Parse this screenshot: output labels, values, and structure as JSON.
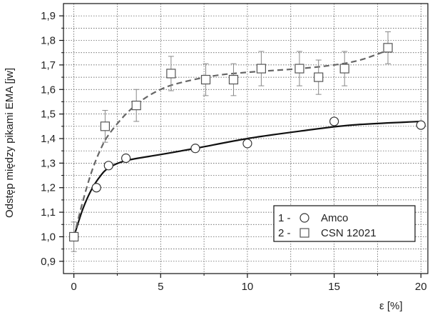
{
  "chart_data": {
    "type": "scatter",
    "xlabel": "ε [%]",
    "ylabel": "Odstęp między pikami EMA [jw]",
    "xlim": [
      -0.6,
      20.4
    ],
    "ylim": [
      0.85,
      1.95
    ],
    "xticks": [
      0,
      5,
      10,
      15,
      20
    ],
    "xtick_labels": [
      "0",
      "5",
      "10",
      "15",
      "20"
    ],
    "yticks": [
      0.9,
      1.0,
      1.1,
      1.2,
      1.3,
      1.4,
      1.5,
      1.6,
      1.7,
      1.8,
      1.9
    ],
    "ytick_labels": [
      "0,9",
      "1,0",
      "1,1",
      "1,2",
      "1,3",
      "1,4",
      "1,5",
      "1,6",
      "1,7",
      "1,8",
      "1,9"
    ],
    "grid": true,
    "legend_position": "bottom-right",
    "series": [
      {
        "name": "Amco",
        "legend_label": "Amco",
        "legend_num": "1 -",
        "marker": "circle",
        "line_style": "solid",
        "color": "#111111",
        "points": [
          {
            "x": 0,
            "y": 1.0
          },
          {
            "x": 1.3,
            "y": 1.2
          },
          {
            "x": 2.0,
            "y": 1.29
          },
          {
            "x": 3.0,
            "y": 1.32
          },
          {
            "x": 7.0,
            "y": 1.36
          },
          {
            "x": 10.0,
            "y": 1.38
          },
          {
            "x": 15.0,
            "y": 1.47
          },
          {
            "x": 20.0,
            "y": 1.455
          }
        ],
        "fit": [
          {
            "x": 0,
            "y": 1.0
          },
          {
            "x": 0.5,
            "y": 1.11
          },
          {
            "x": 1.0,
            "y": 1.19
          },
          {
            "x": 1.5,
            "y": 1.245
          },
          {
            "x": 2.0,
            "y": 1.28
          },
          {
            "x": 3.0,
            "y": 1.31
          },
          {
            "x": 5.0,
            "y": 1.335
          },
          {
            "x": 7.0,
            "y": 1.36
          },
          {
            "x": 10.0,
            "y": 1.4
          },
          {
            "x": 13.0,
            "y": 1.43
          },
          {
            "x": 16.0,
            "y": 1.455
          },
          {
            "x": 20.0,
            "y": 1.47
          }
        ]
      },
      {
        "name": "CSN 12021",
        "legend_label": "CSN 12021",
        "legend_num": "2 -",
        "marker": "square",
        "line_style": "dashed",
        "color": "#666666",
        "points": [
          {
            "x": 0,
            "y": 1.0,
            "err": 0.06
          },
          {
            "x": 1.8,
            "y": 1.45,
            "err": 0.065
          },
          {
            "x": 3.6,
            "y": 1.535,
            "err": 0.065
          },
          {
            "x": 5.6,
            "y": 1.665,
            "err": 0.07
          },
          {
            "x": 7.6,
            "y": 1.64,
            "err": 0.065
          },
          {
            "x": 9.2,
            "y": 1.64,
            "err": 0.065
          },
          {
            "x": 10.8,
            "y": 1.685,
            "err": 0.07
          },
          {
            "x": 13.0,
            "y": 1.685,
            "err": 0.07
          },
          {
            "x": 14.1,
            "y": 1.65,
            "err": 0.07
          },
          {
            "x": 15.6,
            "y": 1.685,
            "err": 0.07
          },
          {
            "x": 18.1,
            "y": 1.77,
            "err": 0.065
          }
        ],
        "fit": [
          {
            "x": 0,
            "y": 1.0
          },
          {
            "x": 0.5,
            "y": 1.14
          },
          {
            "x": 1.0,
            "y": 1.26
          },
          {
            "x": 1.5,
            "y": 1.35
          },
          {
            "x": 2.0,
            "y": 1.415
          },
          {
            "x": 3.0,
            "y": 1.5
          },
          {
            "x": 4.0,
            "y": 1.56
          },
          {
            "x": 5.0,
            "y": 1.6
          },
          {
            "x": 6.0,
            "y": 1.625
          },
          {
            "x": 8.0,
            "y": 1.655
          },
          {
            "x": 10.0,
            "y": 1.67
          },
          {
            "x": 13.0,
            "y": 1.685
          },
          {
            "x": 15.0,
            "y": 1.7
          },
          {
            "x": 16.5,
            "y": 1.72
          },
          {
            "x": 18.1,
            "y": 1.76
          }
        ]
      }
    ]
  }
}
